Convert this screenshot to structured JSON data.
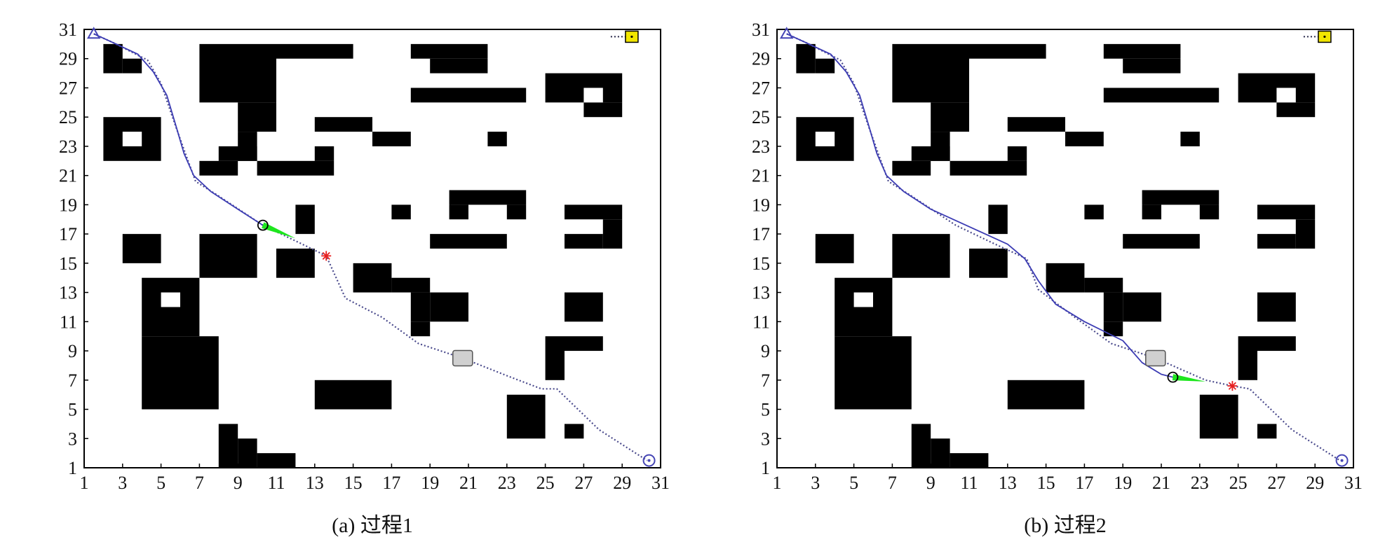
{
  "panels": [
    {
      "caption": "(a) 过程1",
      "x_ticks": [
        "1",
        "3",
        "5",
        "7",
        "9",
        "11",
        "13",
        "15",
        "17",
        "19",
        "21",
        "23",
        "25",
        "27",
        "29",
        "31"
      ],
      "y_ticks": [
        "1",
        "3",
        "5",
        "7",
        "9",
        "11",
        "13",
        "15",
        "17",
        "19",
        "21",
        "23",
        "25",
        "27",
        "29",
        "31"
      ],
      "robot": {
        "x": 10.3,
        "y": 17.6,
        "heading_to": {
          "x": 12.0,
          "y": 16.7
        }
      },
      "subgoal": {
        "x": 13.6,
        "y": 15.5
      },
      "moving_obstacle": {
        "x": 20.7,
        "y": 8.5
      },
      "traveled_path": [
        [
          1.5,
          30.7
        ],
        [
          2.5,
          30.1
        ],
        [
          3.8,
          29.3
        ],
        [
          4.6,
          28.1
        ],
        [
          5.3,
          26.5
        ],
        [
          5.8,
          24.3
        ],
        [
          6.2,
          22.5
        ],
        [
          6.7,
          21.0
        ],
        [
          7.6,
          19.9
        ],
        [
          9.0,
          18.7
        ],
        [
          10.3,
          17.6
        ]
      ],
      "planned_path": [
        [
          1.5,
          30.7
        ],
        [
          2.5,
          30.1
        ],
        [
          4.3,
          28.9
        ],
        [
          5.0,
          27.3
        ],
        [
          5.7,
          24.6
        ],
        [
          6.3,
          22.4
        ],
        [
          6.8,
          20.6
        ],
        [
          8.0,
          19.6
        ],
        [
          10.3,
          17.6
        ],
        [
          12.2,
          16.4
        ],
        [
          13.6,
          15.5
        ],
        [
          14.6,
          12.6
        ],
        [
          16.5,
          11.3
        ],
        [
          18.4,
          9.5
        ],
        [
          20.7,
          8.5
        ],
        [
          23.0,
          7.3
        ],
        [
          24.8,
          6.4
        ],
        [
          25.6,
          6.4
        ],
        [
          27.8,
          3.6
        ],
        [
          30.3,
          1.5
        ]
      ]
    },
    {
      "caption": "(b) 过程2",
      "x_ticks": [
        "1",
        "3",
        "5",
        "7",
        "9",
        "11",
        "13",
        "15",
        "17",
        "19",
        "21",
        "23",
        "25",
        "27",
        "29",
        "31"
      ],
      "y_ticks": [
        "1",
        "3",
        "5",
        "7",
        "9",
        "11",
        "13",
        "15",
        "17",
        "19",
        "21",
        "23",
        "25",
        "27",
        "29",
        "31"
      ],
      "robot": {
        "x": 21.6,
        "y": 7.2,
        "heading_to": {
          "x": 23.3,
          "y": 6.9
        }
      },
      "subgoal": {
        "x": 24.7,
        "y": 6.6
      },
      "moving_obstacle": {
        "x": 20.7,
        "y": 8.5
      },
      "traveled_path": [
        [
          1.5,
          30.7
        ],
        [
          2.5,
          30.1
        ],
        [
          3.8,
          29.3
        ],
        [
          4.6,
          28.1
        ],
        [
          5.3,
          26.5
        ],
        [
          5.8,
          24.3
        ],
        [
          6.2,
          22.5
        ],
        [
          6.7,
          21.0
        ],
        [
          7.6,
          19.9
        ],
        [
          9.0,
          18.7
        ],
        [
          11.0,
          17.5
        ],
        [
          13.0,
          16.3
        ],
        [
          13.9,
          15.3
        ],
        [
          14.6,
          13.8
        ],
        [
          15.5,
          12.2
        ],
        [
          17.0,
          11.0
        ],
        [
          19.0,
          9.7
        ],
        [
          20.0,
          8.2
        ],
        [
          21.0,
          7.4
        ],
        [
          21.6,
          7.2
        ]
      ],
      "planned_path": [
        [
          1.5,
          30.7
        ],
        [
          2.5,
          30.1
        ],
        [
          4.3,
          28.9
        ],
        [
          5.0,
          27.3
        ],
        [
          5.7,
          24.6
        ],
        [
          6.3,
          22.4
        ],
        [
          6.8,
          20.6
        ],
        [
          8.0,
          19.6
        ],
        [
          10.3,
          17.6
        ],
        [
          12.2,
          16.4
        ],
        [
          14.0,
          15.3
        ],
        [
          14.6,
          13.2
        ],
        [
          16.5,
          11.3
        ],
        [
          18.4,
          9.5
        ],
        [
          20.7,
          8.5
        ],
        [
          23.3,
          7.0
        ],
        [
          24.7,
          6.6
        ],
        [
          25.6,
          6.4
        ],
        [
          27.8,
          3.6
        ],
        [
          30.3,
          1.5
        ]
      ]
    }
  ],
  "start": {
    "x": 1.5,
    "y": 30.7
  },
  "goal": {
    "x": 30.4,
    "y": 1.5
  },
  "exit": {
    "x": 29.5,
    "y": 30.5
  },
  "obstacles": [
    [
      2,
      28,
      3,
      30
    ],
    [
      3,
      28,
      4,
      29
    ],
    [
      2,
      22,
      5,
      25
    ],
    [
      7,
      26,
      11,
      30
    ],
    [
      9,
      24,
      11,
      26
    ],
    [
      8,
      22,
      10,
      23
    ],
    [
      9,
      22,
      10,
      24
    ],
    [
      7,
      21,
      9,
      22
    ],
    [
      10,
      21,
      14,
      22
    ],
    [
      13,
      22,
      14,
      23
    ],
    [
      11,
      29,
      15,
      30
    ],
    [
      13,
      24,
      16,
      25
    ],
    [
      16,
      23,
      18,
      24
    ],
    [
      22,
      23,
      23,
      24
    ],
    [
      18,
      29,
      22,
      30
    ],
    [
      19,
      28,
      22,
      29
    ],
    [
      18,
      26,
      24,
      27
    ],
    [
      25,
      26,
      29,
      28
    ],
    [
      27,
      25,
      29,
      26
    ],
    [
      12,
      17,
      13,
      19
    ],
    [
      17,
      18,
      18,
      19
    ],
    [
      20,
      19,
      24,
      20
    ],
    [
      20,
      18,
      21,
      19
    ],
    [
      23,
      18,
      24,
      19
    ],
    [
      19,
      16,
      23,
      17
    ],
    [
      26,
      18,
      29,
      19
    ],
    [
      28,
      16,
      29,
      18
    ],
    [
      26,
      16,
      28,
      17
    ],
    [
      3,
      15,
      5,
      17
    ],
    [
      7,
      14,
      10,
      17
    ],
    [
      11,
      14,
      13,
      16
    ],
    [
      15,
      13,
      17,
      15
    ],
    [
      17,
      13,
      19,
      14
    ],
    [
      18,
      11,
      19,
      13
    ],
    [
      19,
      11,
      21,
      13
    ],
    [
      18,
      10,
      19,
      11
    ],
    [
      4,
      10,
      7,
      14
    ],
    [
      26,
      11,
      28,
      13
    ],
    [
      25,
      7,
      26,
      10
    ],
    [
      26,
      9,
      28,
      10
    ],
    [
      4,
      5,
      8,
      10
    ],
    [
      13,
      5,
      17,
      7
    ],
    [
      23,
      3,
      25,
      6
    ],
    [
      26,
      3,
      27,
      4
    ],
    [
      8,
      1,
      9,
      4
    ],
    [
      9,
      1,
      10,
      3
    ],
    [
      10,
      1,
      12,
      2
    ]
  ],
  "obstacle_holes": [
    [
      3,
      23,
      4,
      24
    ],
    [
      5,
      12,
      6,
      13
    ],
    [
      27,
      26,
      28,
      27
    ]
  ],
  "colors": {
    "obstacle": "#000000",
    "planned_path": "#4a4a8c",
    "traveled_path": "#3c3cb4",
    "robot_heading": "#1ee61e",
    "subgoal": "#e82020",
    "start_goal_marker": "#4545b5",
    "exit": "#f2e600",
    "moving_obstacle": "#d0d0d0"
  }
}
